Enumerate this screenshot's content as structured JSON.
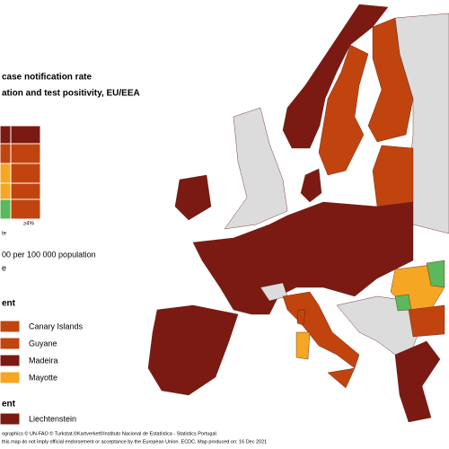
{
  "legend": {
    "title": [
      "case notification rate",
      "ation and test positivity, EU/EEA"
    ],
    "matrix_axis_label": "≥4%",
    "matrix_side_label": "te",
    "rate_note": "00 per 100 000 population",
    "rate_note_2": "e",
    "outermost_heading": "ent",
    "outermost": [
      "Canary Islands",
      "Guyane",
      "Madeira",
      "Mayotte"
    ],
    "other_heading": "ent",
    "other": [
      "Liechtenstein"
    ]
  },
  "footer": [
    "ographics © UN-FAO © Turkstat.©Kartverket©Instituto Nacional de Estatística - Statistics Portugal.",
    "this map do not imply official endorsement or acceptance by the European Union. ECDC. Map produced on: 16 Dec 2021"
  ]
}
